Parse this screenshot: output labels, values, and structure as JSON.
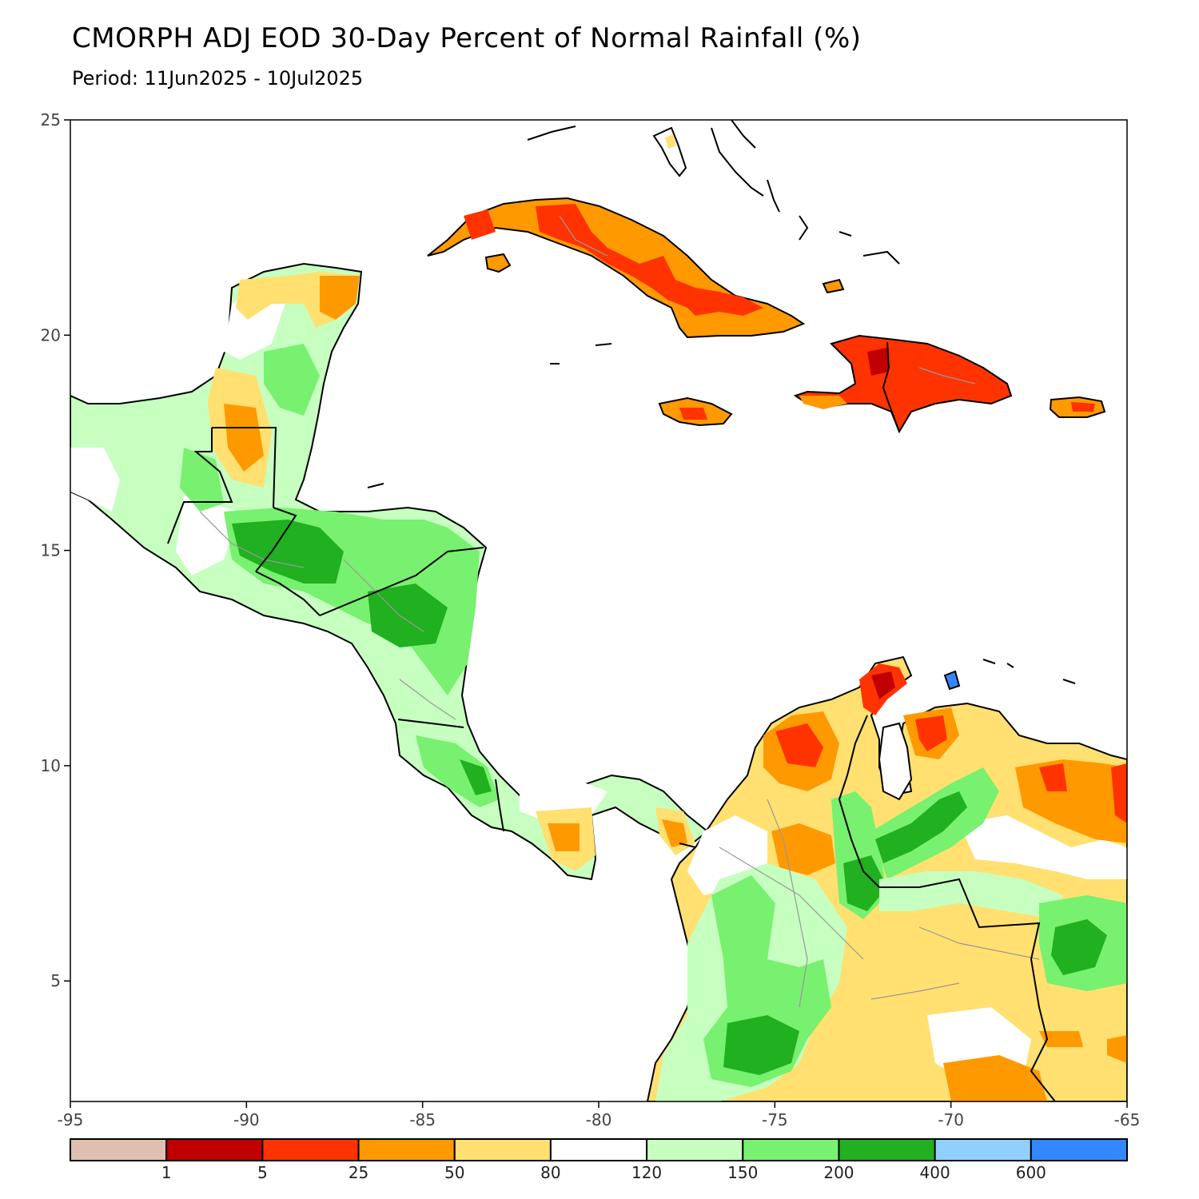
{
  "title": "CMORPH ADJ EOD 30-Day Percent of Normal Rainfall (%)",
  "subtitle": "Period: 11Jun2025 - 10Jul2025",
  "axes": {
    "lon_ticks": [
      {
        "value": -95,
        "label": "-95"
      },
      {
        "value": -90,
        "label": "-90"
      },
      {
        "value": -85,
        "label": "-85"
      },
      {
        "value": -80,
        "label": "-80"
      },
      {
        "value": -75,
        "label": "-75"
      },
      {
        "value": -70,
        "label": "-70"
      },
      {
        "value": -65,
        "label": "-65"
      }
    ],
    "lat_ticks": [
      {
        "value": 25,
        "label": "25"
      },
      {
        "value": 20,
        "label": "20"
      },
      {
        "value": 15,
        "label": "15"
      },
      {
        "value": 10,
        "label": "10"
      },
      {
        "value": 5,
        "label": "5"
      }
    ],
    "lon_range": [
      -95,
      -65
    ],
    "lat_range": [
      2.2,
      25
    ]
  },
  "colorbar": {
    "colors": [
      "#dfbfb0",
      "#c00000",
      "#ff3300",
      "#ff9900",
      "#ffe070",
      "#ffffff",
      "#c6ffc0",
      "#78f070",
      "#20b020",
      "#90d0ff",
      "#3388ff"
    ],
    "labels": [
      "1",
      "5",
      "25",
      "50",
      "80",
      "120",
      "150",
      "200",
      "400",
      "600"
    ]
  },
  "palette": {
    "land_normal": "#ffffff",
    "light_green": "#c6ffc0",
    "green": "#78f070",
    "dark_green": "#20b020",
    "yellow": "#ffe070",
    "orange": "#ff9900",
    "red_orange": "#ff3300",
    "dark_red": "#c00000",
    "coast": "#000000",
    "internal_border": "#999999"
  }
}
